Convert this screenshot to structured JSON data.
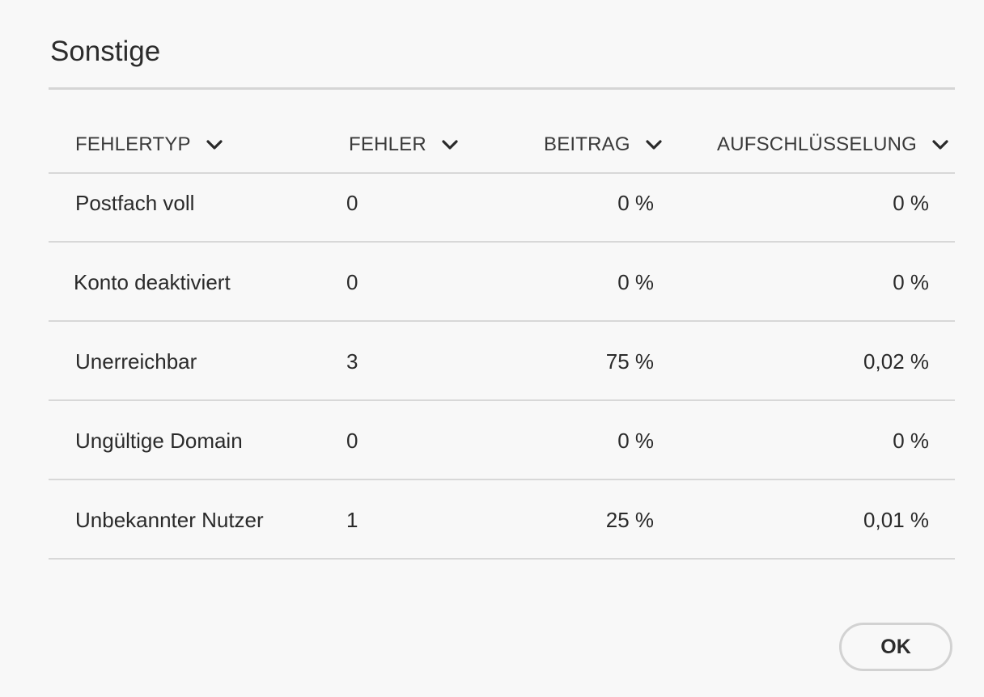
{
  "dialog": {
    "title": "Sonstige",
    "ok_label": "OK"
  },
  "table": {
    "columns": [
      {
        "label": "FEHLERTYP",
        "icon": "chevron-down-icon"
      },
      {
        "label": "FEHLER",
        "icon": "chevron-down-icon"
      },
      {
        "label": "BEITRAG",
        "icon": "chevron-down-icon"
      },
      {
        "label": "AUFSCHLÜSSELUNG",
        "icon": "chevron-down-icon"
      }
    ],
    "rows": [
      {
        "type": "Postfach voll",
        "errors": "0",
        "contribution": "0 %",
        "breakdown": "0 %"
      },
      {
        "type": "Konto deaktiviert",
        "errors": "0",
        "contribution": "0 %",
        "breakdown": "0 %"
      },
      {
        "type": "Unerreichbar",
        "errors": "3",
        "contribution": "75 %",
        "breakdown": "0,02 %"
      },
      {
        "type": "Ungültige Domain",
        "errors": "0",
        "contribution": "0 %",
        "breakdown": "0 %"
      },
      {
        "type": "Unbekannter Nutzer",
        "errors": "1",
        "contribution": "25 %",
        "breakdown": "0,01 %"
      }
    ]
  }
}
